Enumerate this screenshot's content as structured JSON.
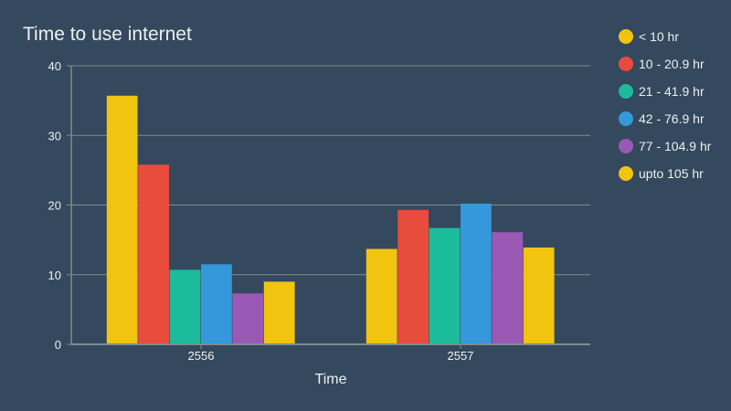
{
  "chart_data": {
    "type": "bar",
    "title": "Time to use internet",
    "xlabel": "Time",
    "ylabel": "",
    "categories": [
      "2556",
      "2557"
    ],
    "ylim": [
      0,
      40
    ],
    "yticks": [
      0,
      10,
      20,
      30,
      40
    ],
    "grid": true,
    "legend_position": "right",
    "series": [
      {
        "name": "< 10 hr",
        "color": "#f1c40f",
        "values": [
          35.7,
          13.7
        ]
      },
      {
        "name": "10 - 20.9 hr",
        "color": "#e74c3c",
        "values": [
          25.8,
          19.3
        ]
      },
      {
        "name": "21 - 41.9 hr",
        "color": "#1abc9c",
        "values": [
          10.7,
          16.7
        ]
      },
      {
        "name": "42 - 76.9 hr",
        "color": "#3498db",
        "values": [
          11.5,
          20.2
        ]
      },
      {
        "name": "77 - 104.9 hr",
        "color": "#9b59b6",
        "values": [
          7.3,
          16.1
        ]
      },
      {
        "name": "upto 105 hr",
        "color": "#f1c40f",
        "values": [
          9.0,
          13.9
        ]
      }
    ]
  }
}
